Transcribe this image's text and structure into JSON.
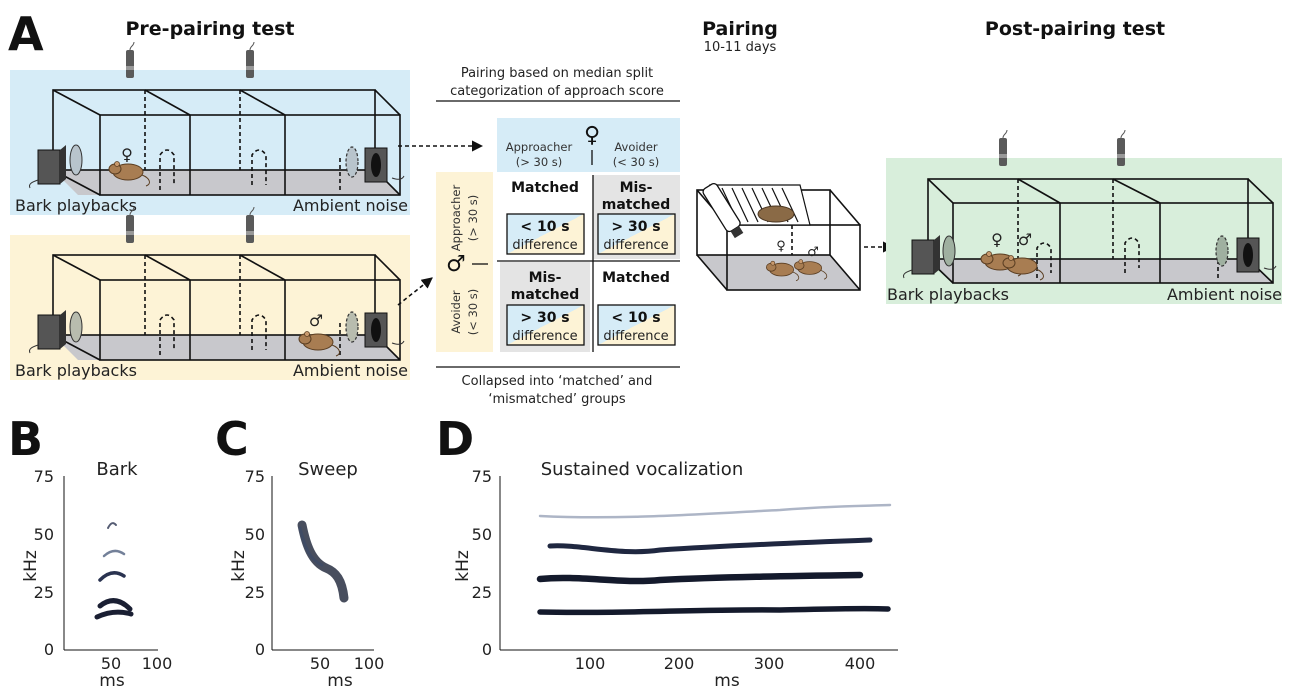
{
  "panel_letters": {
    "A": "A",
    "B": "B",
    "C": "C",
    "D": "D"
  },
  "stages": {
    "pre": "Pre-pairing test",
    "pairing": "Pairing",
    "pairing_duration": "10-11 days",
    "post": "Post-pairing test"
  },
  "speaker_labels": {
    "bark": "Bark playbacks",
    "noise": "Ambient noise"
  },
  "symbols": {
    "female": "♀",
    "male": "♂"
  },
  "matrix": {
    "header_line1": "Pairing based on median split",
    "header_line2": "categorization of approach score",
    "footer_line1": "Collapsed into ‘matched’ and",
    "footer_line2": "‘mismatched’ groups",
    "col_approacher": "Approacher",
    "col_approacher_crit": "(> 30 s)",
    "col_avoider": "Avoider",
    "col_avoider_crit": "(< 30 s)",
    "row_approacher": "Approacher",
    "row_approacher_crit": "(> 30 s)",
    "row_avoider": "Avoider",
    "row_avoider_crit": "(< 30 s)",
    "cell_tl": {
      "label": "Matched",
      "value": "< 10 s",
      "unit": "difference"
    },
    "cell_tr": {
      "label1": "Mis-",
      "label2": "matched",
      "value": "> 30 s",
      "unit": "difference"
    },
    "cell_bl": {
      "label1": "Mis-",
      "label2": "matched",
      "value": "> 30 s",
      "unit": "difference"
    },
    "cell_br": {
      "label": "Matched",
      "value": "< 10 s",
      "unit": "difference"
    }
  },
  "spectrograms": {
    "B": {
      "title": "Bark",
      "ylabel": "kHz",
      "xlabel": "ms",
      "yticks": [
        "75",
        "50",
        "25",
        "0"
      ],
      "xticks": [
        "50",
        "100"
      ]
    },
    "C": {
      "title": "Sweep",
      "ylabel": "kHz",
      "xlabel": "ms",
      "yticks": [
        "75",
        "50",
        "25",
        "0"
      ],
      "xticks": [
        "50",
        "100"
      ]
    },
    "D": {
      "title": "Sustained vocalization",
      "ylabel": "kHz",
      "xlabel": "ms",
      "yticks": [
        "75",
        "50",
        "25",
        "0"
      ],
      "xticks": [
        "100",
        "200",
        "300",
        "400"
      ]
    }
  },
  "colors": {
    "female_bg": "#d6ecf7",
    "male_bg": "#fdf3d6",
    "post_bg": "#d8eedb",
    "floor": "#c8c8cc",
    "mismatch_bg": "#e4e4e4",
    "mouse": "#a87d52"
  }
}
